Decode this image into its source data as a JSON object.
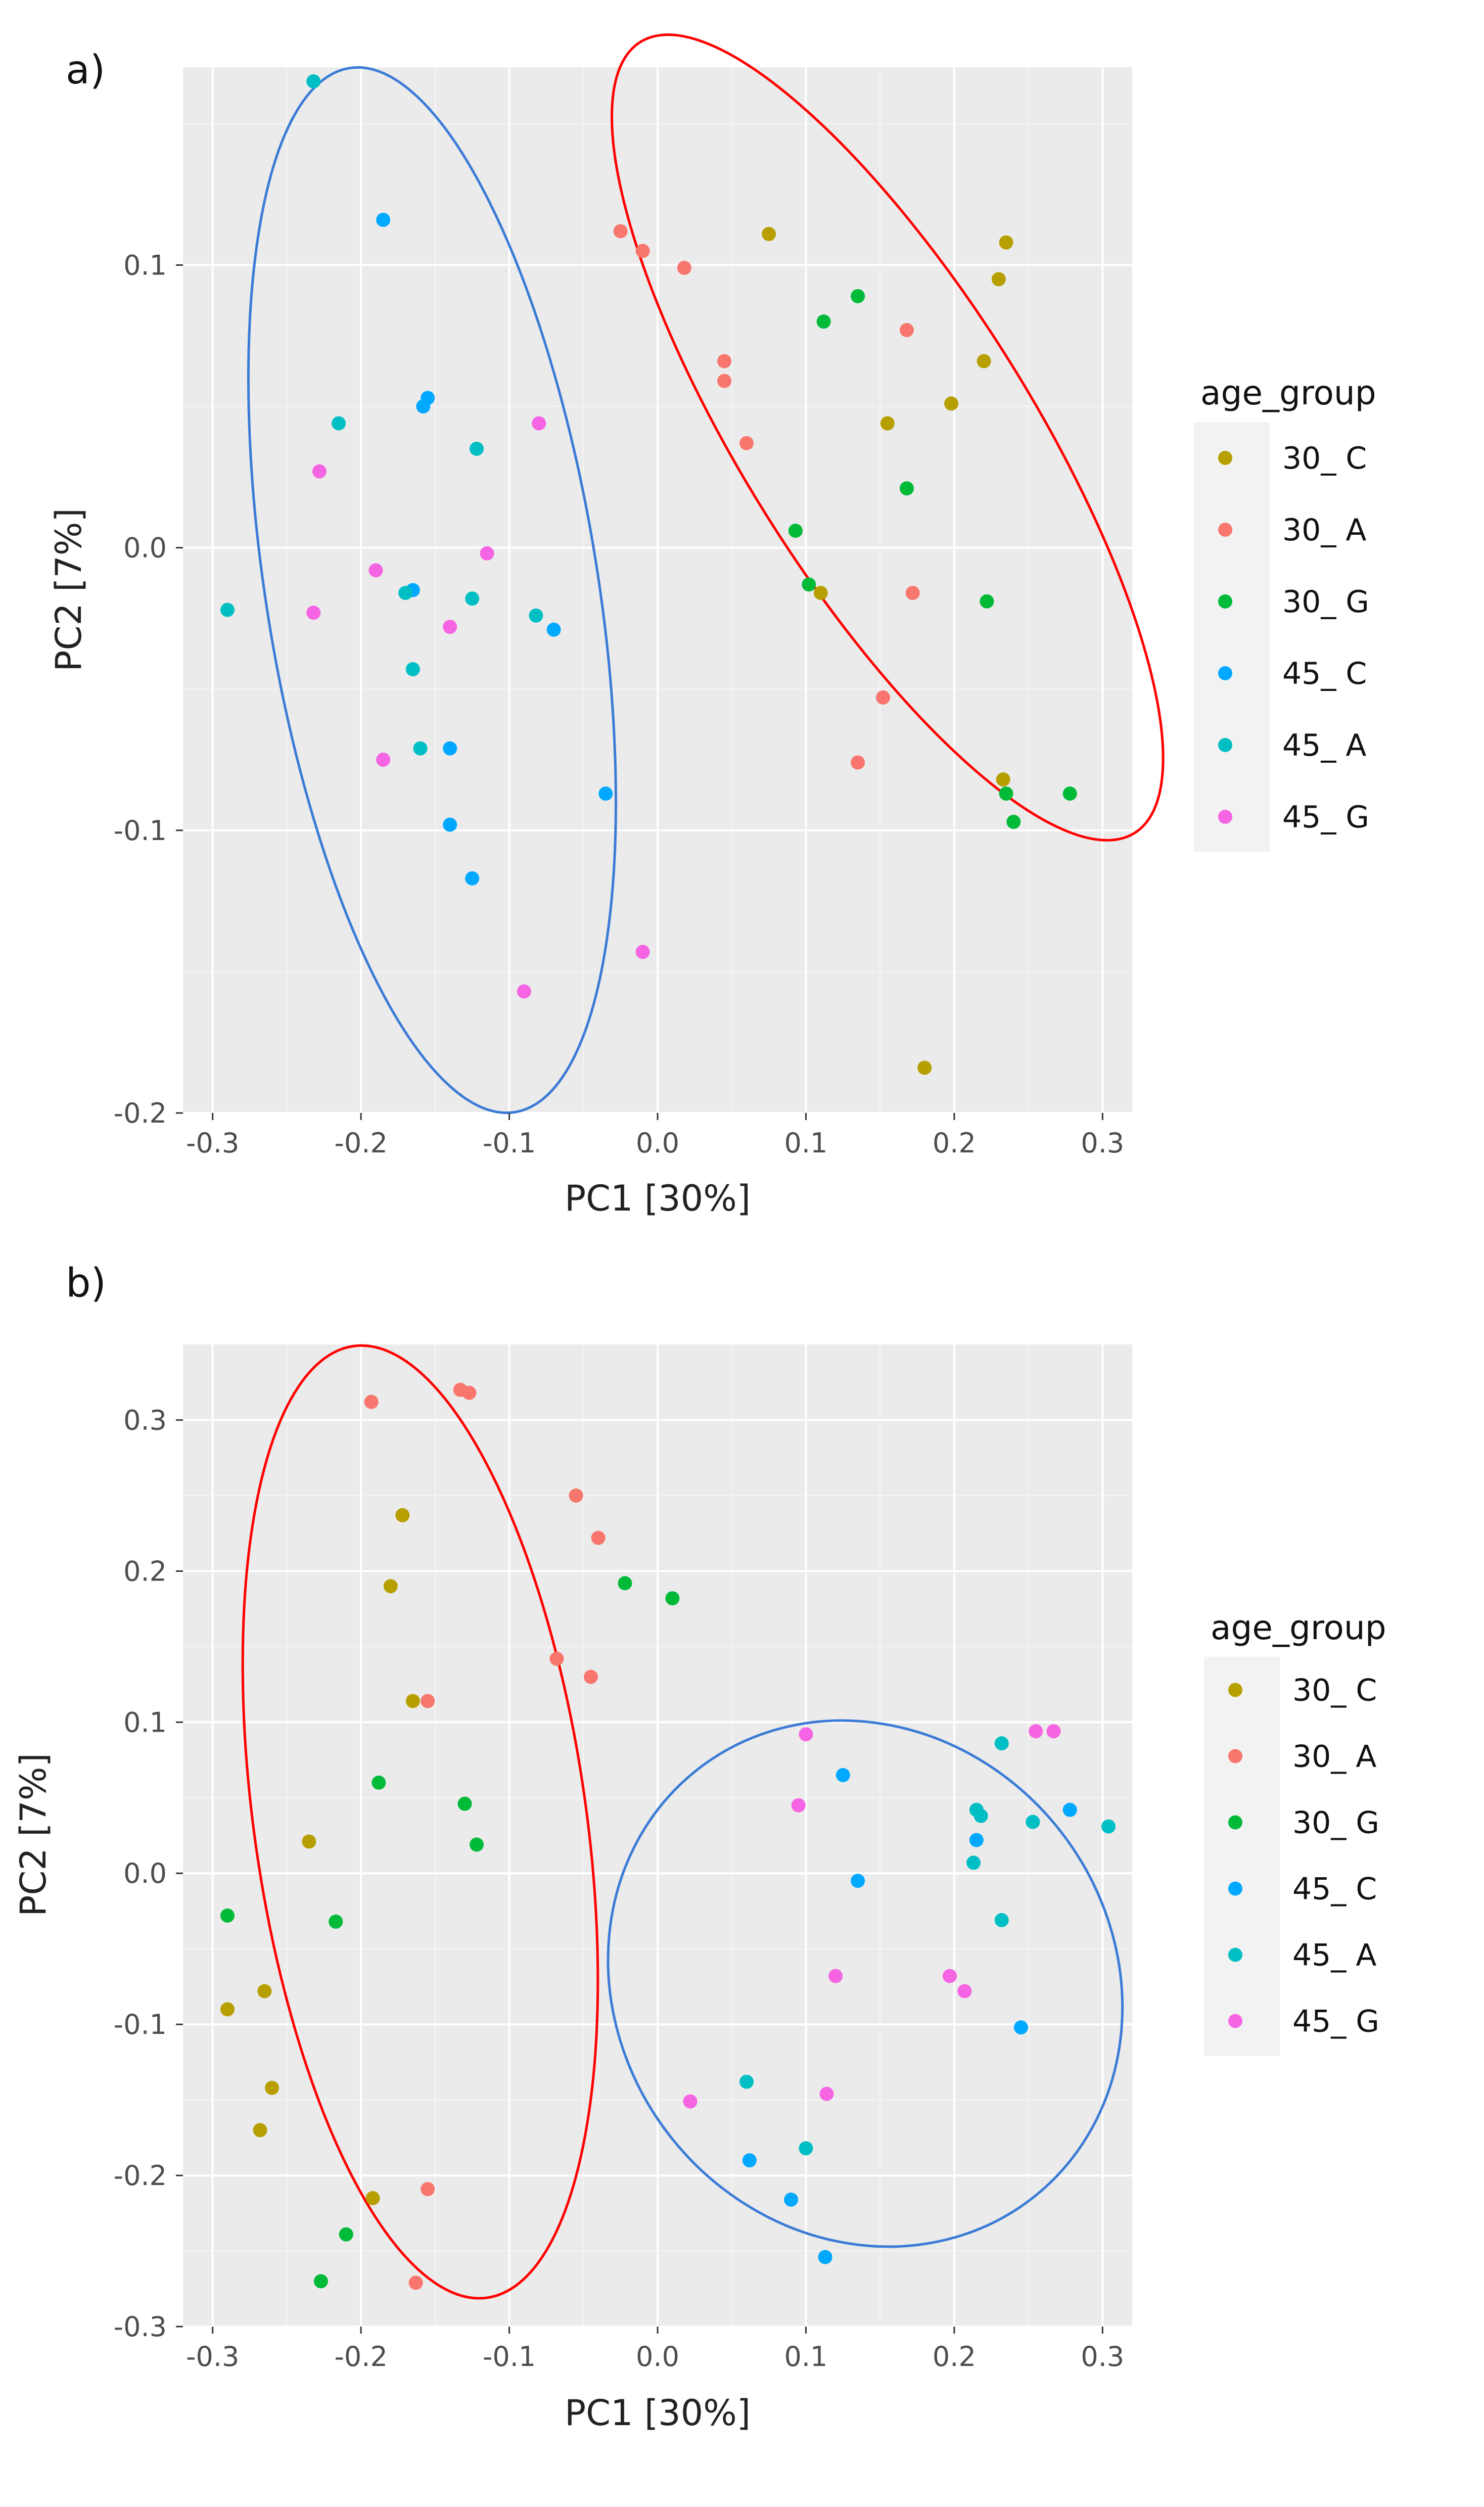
{
  "chart_data": [
    {
      "type": "scatter",
      "panel_label": "a)",
      "title": "",
      "xlabel": "PC1 [30%]",
      "ylabel": "PC2 [7%]",
      "xlim": [
        -0.32,
        0.32
      ],
      "ylim": [
        -0.2,
        0.17
      ],
      "xticks": [
        -0.3,
        -0.2,
        -0.1,
        0.0,
        0.1,
        0.2,
        0.3
      ],
      "xtick_labels": [
        "-0.3",
        "-0.2",
        "-0.1",
        "0.0",
        "0.1",
        "0.2",
        "0.3"
      ],
      "yticks": [
        -0.2,
        -0.1,
        0.0,
        0.1
      ],
      "ytick_labels": [
        "-0.2",
        "-0.1",
        "0.0",
        "0.1"
      ],
      "grid": true,
      "legend": {
        "title": "age_group",
        "position": "right"
      },
      "series": [
        {
          "name": "30_ C",
          "color": "#B79F00",
          "x": [
            0.075,
            0.235,
            0.23,
            0.22,
            0.198,
            0.155,
            0.11,
            0.233,
            0.18
          ],
          "y": [
            0.111,
            0.108,
            0.095,
            0.066,
            0.051,
            0.044,
            -0.016,
            -0.082,
            -0.184
          ]
        },
        {
          "name": "30_ A",
          "color": "#F8766D",
          "x": [
            -0.025,
            -0.01,
            0.018,
            0.045,
            0.045,
            0.06,
            0.168,
            0.172,
            0.152,
            0.135
          ],
          "y": [
            0.112,
            0.105,
            0.099,
            0.066,
            0.059,
            0.037,
            0.077,
            -0.016,
            -0.053,
            -0.076
          ]
        },
        {
          "name": "30_ G",
          "color": "#00BA38",
          "x": [
            0.135,
            0.112,
            0.168,
            0.093,
            0.102,
            0.222,
            0.235,
            0.24,
            0.278
          ],
          "y": [
            0.089,
            0.08,
            0.021,
            0.006,
            -0.013,
            -0.019,
            -0.087,
            -0.097,
            -0.087
          ]
        },
        {
          "name": "45_ C",
          "color": "#00A9FF",
          "x": [
            -0.185,
            -0.155,
            -0.158,
            -0.165,
            -0.07,
            -0.14,
            -0.035,
            -0.14,
            -0.125
          ],
          "y": [
            0.116,
            0.053,
            0.05,
            -0.015,
            -0.029,
            -0.071,
            -0.087,
            -0.098,
            -0.117
          ]
        },
        {
          "name": "45_ A",
          "color": "#00BFC4",
          "x": [
            -0.232,
            -0.215,
            -0.122,
            -0.29,
            -0.17,
            -0.125,
            -0.082,
            -0.165,
            -0.16
          ],
          "y": [
            0.165,
            0.044,
            0.035,
            -0.022,
            -0.016,
            -0.018,
            -0.024,
            -0.043,
            -0.071
          ]
        },
        {
          "name": "45_ G",
          "color": "#F564E3",
          "x": [
            -0.08,
            -0.228,
            -0.115,
            -0.19,
            -0.232,
            -0.14,
            -0.185,
            -0.01,
            -0.09
          ],
          "y": [
            0.044,
            0.027,
            -0.002,
            -0.008,
            -0.023,
            -0.028,
            -0.075,
            -0.143,
            -0.157
          ]
        }
      ],
      "ellipses": [
        {
          "name": "45-group ellipse",
          "color": "#3B7BD6",
          "cx": -0.152,
          "cy": -0.015,
          "rx": 0.112,
          "ry": 0.187,
          "angle_deg": -9
        },
        {
          "name": "30-group ellipse",
          "color": "#FF0000",
          "cx": 0.155,
          "cy": 0.039,
          "rx": 0.097,
          "ry": 0.165,
          "angle_deg": -32
        }
      ]
    },
    {
      "type": "scatter",
      "panel_label": "b)",
      "title": "",
      "xlabel": "PC1 [30%]",
      "ylabel": "PC2 [7%]",
      "xlim": [
        -0.32,
        0.32
      ],
      "ylim": [
        -0.3,
        0.35
      ],
      "xticks": [
        -0.3,
        -0.2,
        -0.1,
        0.0,
        0.1,
        0.2,
        0.3
      ],
      "xtick_labels": [
        "-0.3",
        "-0.2",
        "-0.1",
        "0.0",
        "0.1",
        "0.2",
        "0.3"
      ],
      "yticks": [
        -0.3,
        -0.2,
        -0.1,
        0.0,
        0.1,
        0.2,
        0.3
      ],
      "ytick_labels": [
        "-0.3",
        "-0.2",
        "-0.1",
        "0.0",
        "0.1",
        "0.2",
        "0.3"
      ],
      "grid": true,
      "legend": {
        "title": "age_group",
        "position": "right"
      },
      "series": [
        {
          "name": "30_ C",
          "color": "#B79F00",
          "x": [
            -0.172,
            -0.18,
            -0.165,
            -0.235,
            -0.29,
            -0.265,
            -0.26,
            -0.268,
            -0.192
          ],
          "y": [
            0.237,
            0.19,
            0.114,
            0.021,
            -0.09,
            -0.078,
            -0.142,
            -0.17,
            -0.215
          ]
        },
        {
          "name": "30_ A",
          "color": "#F8766D",
          "x": [
            -0.193,
            -0.133,
            -0.127,
            -0.055,
            -0.04,
            -0.068,
            -0.045,
            -0.155,
            -0.155,
            -0.163
          ],
          "y": [
            0.312,
            0.32,
            0.318,
            0.25,
            0.222,
            0.142,
            0.13,
            0.114,
            -0.209,
            -0.271
          ]
        },
        {
          "name": "30_ G",
          "color": "#00BA38",
          "x": [
            -0.022,
            0.01,
            -0.188,
            -0.13,
            -0.122,
            -0.29,
            -0.217,
            -0.21,
            -0.227
          ],
          "y": [
            0.192,
            0.182,
            0.06,
            0.046,
            0.019,
            -0.028,
            -0.032,
            -0.239,
            -0.27
          ]
        },
        {
          "name": "45_ C",
          "color": "#00A9FF",
          "x": [
            0.125,
            0.278,
            0.215,
            0.135,
            0.245,
            0.062,
            0.09,
            0.113
          ],
          "y": [
            0.065,
            0.042,
            0.022,
            -0.005,
            -0.102,
            -0.19,
            -0.216,
            -0.254
          ]
        },
        {
          "name": "45_ A",
          "color": "#00BFC4",
          "x": [
            0.232,
            0.215,
            0.218,
            0.304,
            0.253,
            0.213,
            0.232,
            0.06,
            0.1
          ],
          "y": [
            0.086,
            0.042,
            0.038,
            0.031,
            0.034,
            0.007,
            -0.031,
            -0.138,
            -0.182
          ]
        },
        {
          "name": "45_ G",
          "color": "#F564E3",
          "x": [
            0.255,
            0.267,
            0.1,
            0.095,
            0.12,
            0.197,
            0.207,
            0.022,
            0.114
          ],
          "y": [
            0.094,
            0.094,
            0.092,
            0.045,
            -0.068,
            -0.068,
            -0.078,
            -0.151,
            -0.146
          ]
        }
      ],
      "ellipses": [
        {
          "name": "30-group ellipse",
          "color": "#FF0000",
          "cx": -0.16,
          "cy": 0.034,
          "rx": 0.112,
          "ry": 0.318,
          "angle_deg": -8
        },
        {
          "name": "45-group ellipse",
          "color": "#3B7BD6",
          "cx": 0.14,
          "cy": -0.073,
          "rx": 0.167,
          "ry": 0.18,
          "angle_deg": -38
        }
      ]
    }
  ]
}
